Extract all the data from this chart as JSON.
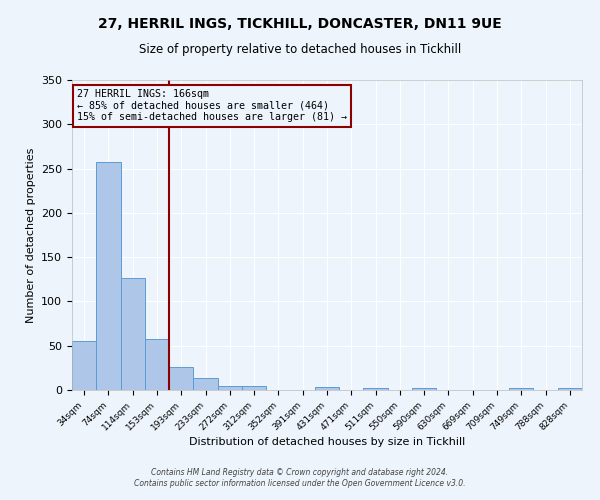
{
  "title1": "27, HERRIL INGS, TICKHILL, DONCASTER, DN11 9UE",
  "title2": "Size of property relative to detached houses in Tickhill",
  "xlabel": "Distribution of detached houses by size in Tickhill",
  "ylabel": "Number of detached properties",
  "categories": [
    "34sqm",
    "74sqm",
    "114sqm",
    "153sqm",
    "193sqm",
    "233sqm",
    "272sqm",
    "312sqm",
    "352sqm",
    "391sqm",
    "431sqm",
    "471sqm",
    "511sqm",
    "550sqm",
    "590sqm",
    "630sqm",
    "669sqm",
    "709sqm",
    "749sqm",
    "788sqm",
    "828sqm"
  ],
  "values": [
    55,
    257,
    126,
    58,
    26,
    13,
    5,
    5,
    0,
    0,
    3,
    0,
    2,
    0,
    2,
    0,
    0,
    0,
    2,
    0,
    2
  ],
  "bar_color": "#AEC6E8",
  "bar_edgecolor": "#5B9BD5",
  "vline_x": 3.5,
  "vline_color": "#8B0000",
  "annotation_title": "27 HERRIL INGS: 166sqm",
  "annotation_line2": "← 85% of detached houses are smaller (464)",
  "annotation_line3": "15% of semi-detached houses are larger (81) →",
  "annotation_box_color": "#8B0000",
  "footer1": "Contains HM Land Registry data © Crown copyright and database right 2024.",
  "footer2": "Contains public sector information licensed under the Open Government Licence v3.0.",
  "ylim": [
    0,
    350
  ],
  "bg_color": "#EEF4FB",
  "grid_color": "#FFFFFF"
}
